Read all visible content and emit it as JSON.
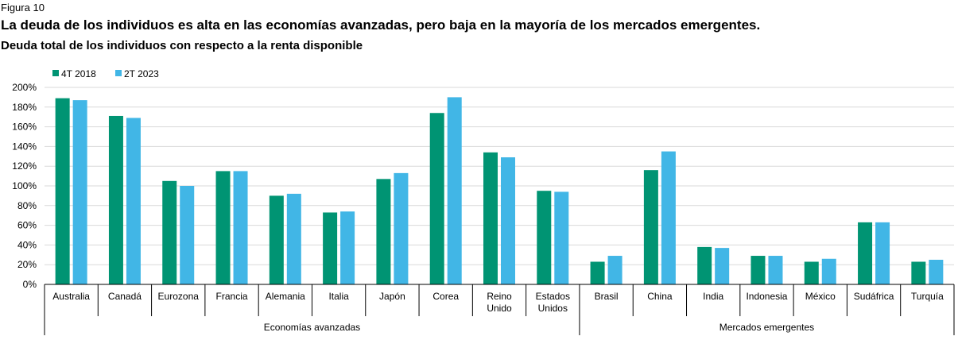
{
  "figure_label": "Figura 10",
  "title": "La deuda de los individuos es alta en las economías avanzadas, pero baja en la mayoría de los mercados emergentes.",
  "subtitle": "Deuda total de los individuos con respecto a la renta disponible",
  "chart_data": {
    "type": "bar",
    "categories": [
      "Australia",
      "Canadá",
      "Eurozona",
      "Francia",
      "Alemania",
      "Italia",
      "Japón",
      "Corea",
      "Reino Unido",
      "Estados Unidos",
      "Brasil",
      "China",
      "India",
      "Indonesia",
      "México",
      "Sudáfrica",
      "Turquía"
    ],
    "category_lines": [
      [
        "Australia"
      ],
      [
        "Canadá"
      ],
      [
        "Eurozona"
      ],
      [
        "Francia"
      ],
      [
        "Alemania"
      ],
      [
        "Italia"
      ],
      [
        "Japón"
      ],
      [
        "Corea"
      ],
      [
        "Reino",
        "Unido"
      ],
      [
        "Estados",
        "Unidos"
      ],
      [
        "Brasil"
      ],
      [
        "China"
      ],
      [
        "India"
      ],
      [
        "Indonesia"
      ],
      [
        "México"
      ],
      [
        "Sudáfrica"
      ],
      [
        "Turquía"
      ]
    ],
    "groups": [
      {
        "name": "Economías avanzadas",
        "start": 0,
        "end": 9
      },
      {
        "name": "Mercados emergentes",
        "start": 10,
        "end": 16
      }
    ],
    "series": [
      {
        "name": "4T 2018",
        "color": "#009473",
        "values": [
          189,
          171,
          105,
          115,
          90,
          73,
          107,
          174,
          134,
          95,
          23,
          116,
          38,
          29,
          23,
          63,
          23
        ]
      },
      {
        "name": "2T 2023",
        "color": "#41b6e6",
        "values": [
          187,
          169,
          100,
          115,
          92,
          74,
          113,
          190,
          129,
          94,
          29,
          135,
          37,
          29,
          26,
          63,
          25
        ]
      }
    ],
    "ylim": [
      0,
      200
    ],
    "yticks": [
      0,
      20,
      40,
      60,
      80,
      100,
      120,
      140,
      160,
      180,
      200
    ],
    "ytick_labels": [
      "0%",
      "20%",
      "40%",
      "60%",
      "80%",
      "100%",
      "120%",
      "140%",
      "160%",
      "180%",
      "200%"
    ],
    "grid": true,
    "legend_position": "top-left"
  }
}
